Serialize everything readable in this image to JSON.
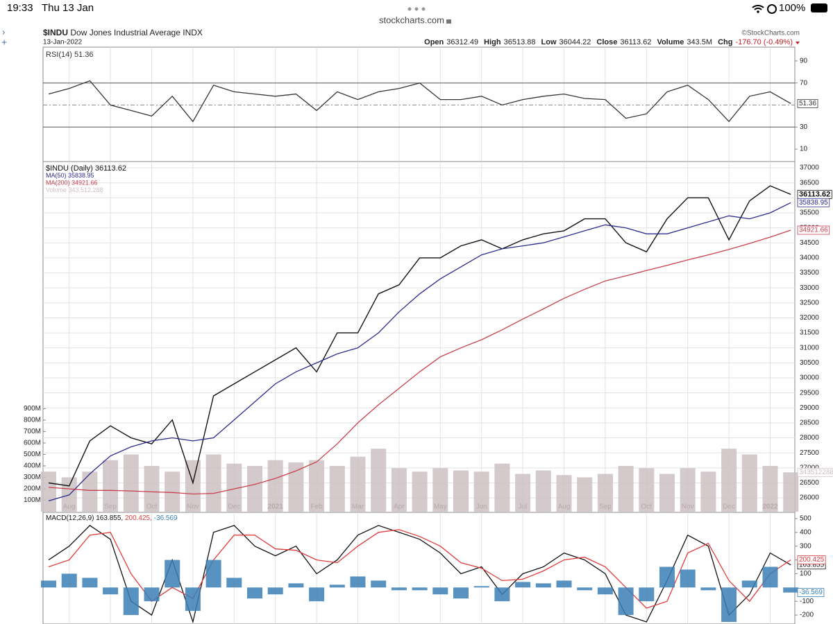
{
  "status_bar": {
    "time": "19:33",
    "date": "Thu 13 Jan",
    "url": "stockcharts.com",
    "battery": "100%"
  },
  "header": {
    "symbol": "$INDU",
    "name": "Dow Jones Industrial Average INDX",
    "date": "13-Jan-2022",
    "copyright": "©StockCharts.com",
    "quote": [
      {
        "label": "Open",
        "value": "36312.49"
      },
      {
        "label": "High",
        "value": "36513.88"
      },
      {
        "label": "Low",
        "value": "36044.22"
      },
      {
        "label": "Close",
        "value": "36113.62"
      },
      {
        "label": "Volume",
        "value": "343.5M"
      },
      {
        "label": "Chg",
        "value": "-176.70 (-0.49%)"
      }
    ]
  },
  "chart_data": [
    {
      "type": "line",
      "ylim": [
        0,
        100
      ],
      "yticks": [
        10,
        30,
        70,
        90
      ],
      "reference_lines": [
        30,
        50,
        70
      ],
      "series": [
        {
          "name": "RSI(14) 51.36",
          "color": "#333333",
          "last_label": "51.36",
          "values": [
            60,
            65,
            72,
            50,
            45,
            40,
            58,
            35,
            68,
            62,
            60,
            58,
            60,
            45,
            62,
            55,
            62,
            65,
            70,
            55,
            55,
            58,
            50,
            55,
            58,
            60,
            56,
            55,
            38,
            42,
            62,
            68,
            55,
            35,
            58,
            62,
            51.36
          ]
        }
      ]
    },
    {
      "type": "line",
      "ylim": [
        25540,
        37140
      ],
      "yticks": [
        26000,
        26500,
        27000,
        27500,
        28000,
        28500,
        29000,
        29500,
        30000,
        30500,
        31000,
        31500,
        32000,
        32500,
        33000,
        33500,
        34000,
        34500,
        35000,
        35500,
        36000,
        36500,
        37000
      ],
      "y2lim": [
        0,
        3040
      ],
      "y2ticks": [
        {
          "value": 100,
          "label": "100M"
        },
        {
          "value": 200,
          "label": "200M"
        },
        {
          "value": 300,
          "label": "300M"
        },
        {
          "value": 400,
          "label": "400M"
        },
        {
          "value": 500,
          "label": "500M"
        },
        {
          "value": 600,
          "label": "600M"
        },
        {
          "value": 700,
          "label": "700M"
        },
        {
          "value": 800,
          "label": "800M"
        },
        {
          "value": 900,
          "label": "900M"
        }
      ],
      "grid": true,
      "categories": [
        null,
        "Aug",
        null,
        "Sep",
        null,
        "Oct",
        null,
        "Nov",
        null,
        "Dec",
        null,
        "2021",
        null,
        "Feb",
        null,
        "Mar",
        null,
        "Apr",
        null,
        "May",
        null,
        "Jun",
        null,
        "Jul",
        null,
        "Aug",
        null,
        "Sep",
        null,
        "Oct",
        null,
        "Nov",
        null,
        "Dec",
        null,
        "2022",
        null
      ],
      "series": [
        {
          "name": "Volume 343,512,288",
          "type": "bar",
          "axis": "y2",
          "color": "#cdbfc2",
          "last_label": "343512288",
          "values": [
            350,
            300,
            350,
            450,
            500,
            400,
            350,
            450,
            500,
            420,
            400,
            450,
            430,
            450,
            400,
            480,
            550,
            380,
            350,
            380,
            360,
            350,
            420,
            330,
            360,
            320,
            300,
            330,
            400,
            380,
            330,
            380,
            350,
            550,
            500,
            400,
            343.51
          ]
        },
        {
          "name": "$INDU (Daily) 36113.62",
          "color": "#111111",
          "last_label": "36113.62",
          "values": [
            26500,
            26400,
            27900,
            28400,
            28000,
            27800,
            28600,
            26500,
            29400,
            29800,
            30200,
            30600,
            31000,
            30200,
            31500,
            31500,
            32800,
            33100,
            34000,
            34000,
            34400,
            34600,
            34300,
            34600,
            34800,
            34900,
            35300,
            35300,
            34500,
            34200,
            35300,
            36000,
            36000,
            34600,
            35900,
            36400,
            36113.62
          ]
        },
        {
          "name": "MA(50) 35838.95",
          "color": "#2b2b8c",
          "last_label": "35838.95",
          "values": [
            25900,
            26100,
            26800,
            27400,
            27700,
            27900,
            28000,
            27900,
            28000,
            28600,
            29200,
            29800,
            30200,
            30500,
            30800,
            31000,
            31500,
            32200,
            32800,
            33300,
            33700,
            34100,
            34300,
            34400,
            34500,
            34700,
            34900,
            35100,
            35000,
            34800,
            34800,
            35000,
            35200,
            35400,
            35300,
            35500,
            35838.95
          ]
        },
        {
          "name": "MA(200) 34921.66",
          "color": "#c8404c",
          "last_label": "34921.66",
          "values": [
            26350,
            26300,
            26250,
            26250,
            26230,
            26200,
            26180,
            26130,
            26150,
            26300,
            26450,
            26650,
            26900,
            27200,
            27800,
            28500,
            29100,
            29650,
            30200,
            30700,
            31000,
            31270,
            31600,
            31960,
            32300,
            32650,
            32950,
            33230,
            33400,
            33580,
            33750,
            33930,
            34100,
            34280,
            34480,
            34690,
            34921.66
          ]
        }
      ]
    },
    {
      "type": "line",
      "ylim": [
        -265,
        540
      ],
      "yticks": [
        -200,
        -100,
        100,
        200,
        300,
        400,
        500
      ],
      "series": [
        {
          "name": "MACD(12,26,9) 163.855,",
          "color": "#111111",
          "last_label": "163.855",
          "values": [
            200,
            300,
            450,
            350,
            -100,
            -200,
            200,
            -250,
            400,
            450,
            300,
            230,
            300,
            100,
            200,
            380,
            450,
            400,
            350,
            250,
            100,
            150,
            -50,
            100,
            150,
            250,
            200,
            100,
            -200,
            -250,
            50,
            380,
            300,
            -200,
            -50,
            250,
            163.855
          ]
        },
        {
          "name": "200.425,",
          "color": "#e03c3c",
          "last_label": "200.425",
          "values": [
            150,
            200,
            380,
            400,
            100,
            -100,
            0,
            -80,
            200,
            380,
            380,
            280,
            270,
            200,
            180,
            300,
            400,
            420,
            370,
            300,
            180,
            140,
            50,
            60,
            120,
            200,
            220,
            150,
            0,
            -150,
            -100,
            250,
            320,
            50,
            -100,
            100,
            200.425
          ]
        },
        {
          "name": "-36.569",
          "type": "bar",
          "color": "#3a7fb5",
          "last_label": "-36.569",
          "values": [
            50,
            100,
            70,
            -50,
            -200,
            -100,
            200,
            -170,
            200,
            70,
            -80,
            -50,
            30,
            -100,
            20,
            80,
            50,
            -20,
            -20,
            -50,
            -80,
            10,
            -100,
            40,
            30,
            50,
            -20,
            -50,
            -200,
            -100,
            150,
            130,
            -20,
            -250,
            50,
            150,
            -36.569
          ]
        }
      ]
    }
  ]
}
